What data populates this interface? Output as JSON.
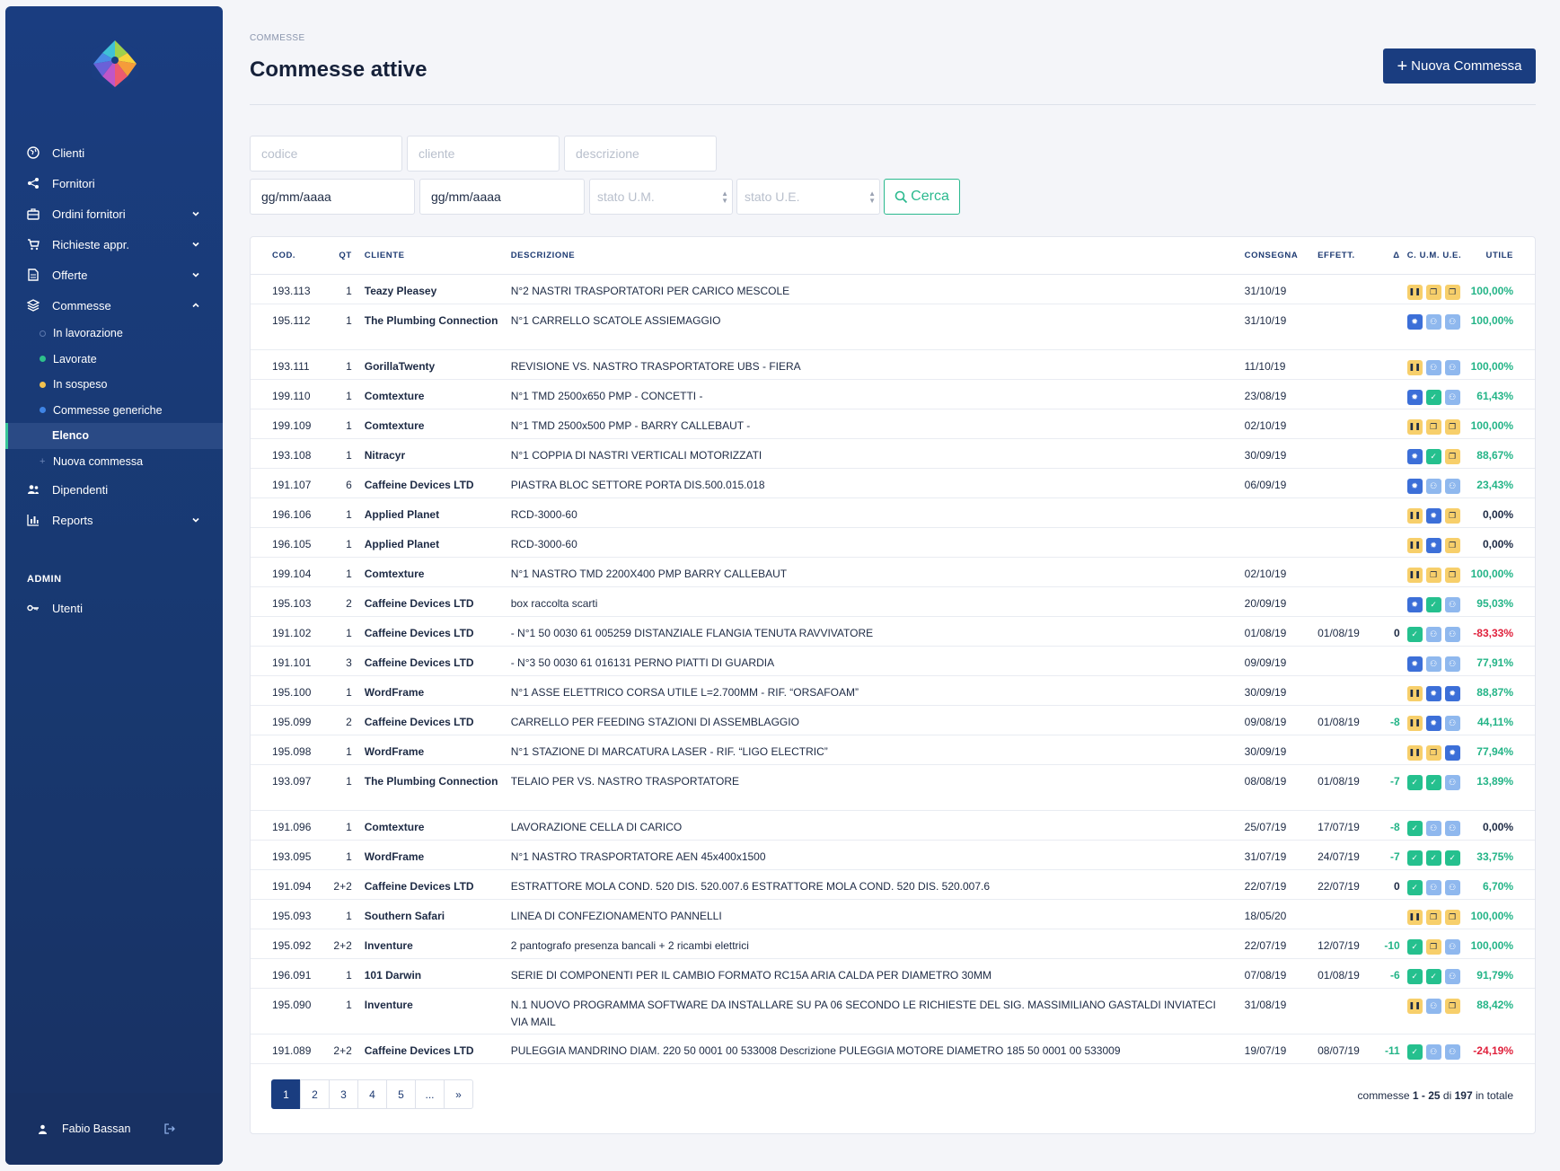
{
  "sidebar": {
    "nav": [
      {
        "label": "Clienti",
        "icon": "globe-icon"
      },
      {
        "label": "Fornitori",
        "icon": "share-icon"
      },
      {
        "label": "Ordini fornitori",
        "icon": "briefcase-icon",
        "chevron": "down"
      },
      {
        "label": "Richieste appr.",
        "icon": "cart-icon",
        "chevron": "down"
      },
      {
        "label": "Offerte",
        "icon": "document-icon",
        "chevron": "down"
      },
      {
        "label": "Commesse",
        "icon": "layers-icon",
        "chevron": "up"
      }
    ],
    "commesse_sub": [
      {
        "label": "In lavorazione",
        "dot": "#2b4d8f"
      },
      {
        "label": "Lavorate",
        "dot": "#2ec08b"
      },
      {
        "label": "In sospeso",
        "dot": "#f2c14e"
      },
      {
        "label": "Commesse generiche",
        "dot": "#3f84e5"
      },
      {
        "label": "Elenco",
        "active": true
      },
      {
        "label": "Nuova commessa",
        "dot": "plus"
      }
    ],
    "nav2": [
      {
        "label": "Dipendenti",
        "icon": "users-icon"
      },
      {
        "label": "Reports",
        "icon": "bar-chart-icon",
        "chevron": "down"
      }
    ],
    "admin_label": "ADMIN",
    "admin_items": [
      {
        "label": "Utenti",
        "icon": "key-icon"
      }
    ],
    "user_name": "Fabio Bassan"
  },
  "header": {
    "breadcrumb": "COMMESSE",
    "title": "Commesse attive",
    "new_button": "Nuova Commessa"
  },
  "filters": {
    "codice_placeholder": "codice",
    "cliente_placeholder": "cliente",
    "descrizione_placeholder": "descrizione",
    "date_from": "gg/mm/aaaa",
    "date_to": "gg/mm/aaaa",
    "stato_um": "stato U.M.",
    "stato_ue": "stato U.E.",
    "search_label": "Cerca"
  },
  "table": {
    "columns": [
      "COD.",
      "QT",
      "CLIENTE",
      "DESCRIZIONE",
      "CONSEGNA",
      "EFFETT.",
      "Δ",
      "C. U.M. U.E.",
      "UTILE"
    ],
    "rows": [
      {
        "cod": "193.113",
        "qt": "1",
        "cliente": "Teazy Pleasey",
        "desc": "N°2 NASTRI TRASPORTATORI PER CARICO MESCOLE",
        "consegna": "31/10/19",
        "effett": "",
        "delta": "",
        "stato": [
          "pause",
          "doc",
          "doc"
        ],
        "utile": "100,00%",
        "u": "pos"
      },
      {
        "cod": "195.112",
        "qt": "1",
        "cliente": "The Plumbing Connection",
        "desc": "N°1 CARRELLO SCATOLE ASSIEMAGGIO",
        "consegna": "31/10/19",
        "effett": "",
        "delta": "",
        "stato": [
          "gear",
          "user",
          "user"
        ],
        "utile": "100,00%",
        "u": "pos",
        "tall": true
      },
      {
        "cod": "193.111",
        "qt": "1",
        "cliente": "GorillaTwenty",
        "desc": "REVISIONE VS. NASTRO TRASPORTATORE UBS - FIERA",
        "consegna": "11/10/19",
        "effett": "",
        "delta": "",
        "stato": [
          "pause",
          "user",
          "user"
        ],
        "utile": "100,00%",
        "u": "pos"
      },
      {
        "cod": "199.110",
        "qt": "1",
        "cliente": "Comtexture",
        "desc": "N°1 TMD 2500x650 PMP - CONCETTI -",
        "consegna": "23/08/19",
        "effett": "",
        "delta": "",
        "stato": [
          "gear",
          "check",
          "user"
        ],
        "utile": "61,43%",
        "u": "pos"
      },
      {
        "cod": "199.109",
        "qt": "1",
        "cliente": "Comtexture",
        "desc": "N°1 TMD 2500x500 PMP - BARRY CALLEBAUT -",
        "consegna": "02/10/19",
        "effett": "",
        "delta": "",
        "stato": [
          "pause",
          "doc",
          "doc"
        ],
        "utile": "100,00%",
        "u": "pos"
      },
      {
        "cod": "193.108",
        "qt": "1",
        "cliente": "Nitracyr",
        "desc": "N°1 COPPIA DI NASTRI VERTICALI MOTORIZZATI",
        "consegna": "30/09/19",
        "effett": "",
        "delta": "",
        "stato": [
          "gear",
          "check",
          "doc"
        ],
        "utile": "88,67%",
        "u": "pos"
      },
      {
        "cod": "191.107",
        "qt": "6",
        "cliente": "Caffeine Devices LTD",
        "desc": "PIASTRA BLOC SETTORE PORTA DIS.500.015.018",
        "consegna": "06/09/19",
        "effett": "",
        "delta": "",
        "stato": [
          "gear",
          "user",
          "user"
        ],
        "utile": "23,43%",
        "u": "pos"
      },
      {
        "cod": "196.106",
        "qt": "1",
        "cliente": "Applied Planet",
        "desc": "RCD-3000-60",
        "consegna": "",
        "effett": "",
        "delta": "",
        "stato": [
          "pause",
          "gear",
          "doc"
        ],
        "utile": "0,00%",
        "u": "zero"
      },
      {
        "cod": "196.105",
        "qt": "1",
        "cliente": "Applied Planet",
        "desc": "RCD-3000-60",
        "consegna": "",
        "effett": "",
        "delta": "",
        "stato": [
          "pause",
          "gear",
          "doc"
        ],
        "utile": "0,00%",
        "u": "zero"
      },
      {
        "cod": "199.104",
        "qt": "1",
        "cliente": "Comtexture",
        "desc": "N°1 NASTRO TMD 2200X400 PMP BARRY CALLEBAUT",
        "consegna": "02/10/19",
        "effett": "",
        "delta": "",
        "stato": [
          "pause",
          "doc",
          "doc"
        ],
        "utile": "100,00%",
        "u": "pos"
      },
      {
        "cod": "195.103",
        "qt": "2",
        "cliente": "Caffeine Devices LTD",
        "desc": "box raccolta scarti",
        "consegna": "20/09/19",
        "effett": "",
        "delta": "",
        "stato": [
          "gear",
          "check",
          "user"
        ],
        "utile": "95,03%",
        "u": "pos"
      },
      {
        "cod": "191.102",
        "qt": "1",
        "cliente": "Caffeine Devices LTD",
        "desc": "- N°1 50 0030 61 005259 DISTANZIALE FLANGIA TENUTA RAVVIVATORE",
        "consegna": "01/08/19",
        "effett": "01/08/19",
        "delta": "0",
        "stato": [
          "check",
          "user",
          "user"
        ],
        "utile": "-83,33%",
        "u": "neg"
      },
      {
        "cod": "191.101",
        "qt": "3",
        "cliente": "Caffeine Devices LTD",
        "desc": "- N°3 50 0030 61 016131 PERNO PIATTI DI GUARDIA",
        "consegna": "09/09/19",
        "effett": "",
        "delta": "",
        "stato": [
          "gear",
          "user",
          "user"
        ],
        "utile": "77,91%",
        "u": "pos"
      },
      {
        "cod": "195.100",
        "qt": "1",
        "cliente": "WordFrame",
        "desc": "N°1 ASSE ELETTRICO CORSA UTILE L=2.700MM - RIF. “ORSAFOAM”",
        "consegna": "30/09/19",
        "effett": "",
        "delta": "",
        "stato": [
          "pause",
          "gear",
          "gear"
        ],
        "utile": "88,87%",
        "u": "pos"
      },
      {
        "cod": "195.099",
        "qt": "2",
        "cliente": "Caffeine Devices LTD",
        "desc": "CARRELLO PER FEEDING STAZIONI DI ASSEMBLAGGIO",
        "consegna": "09/08/19",
        "effett": "01/08/19",
        "delta": "-8",
        "stato": [
          "pause",
          "gear",
          "user"
        ],
        "utile": "44,11%",
        "u": "pos"
      },
      {
        "cod": "195.098",
        "qt": "1",
        "cliente": "WordFrame",
        "desc": "N°1 STAZIONE DI MARCATURA LASER - RIF. “LIGO ELECTRIC”",
        "consegna": "30/09/19",
        "effett": "",
        "delta": "",
        "stato": [
          "pause",
          "doc",
          "gear"
        ],
        "utile": "77,94%",
        "u": "pos"
      },
      {
        "cod": "193.097",
        "qt": "1",
        "cliente": "The Plumbing Connection",
        "desc": "TELAIO PER VS. NASTRO TRASPORTATORE",
        "consegna": "08/08/19",
        "effett": "01/08/19",
        "delta": "-7",
        "stato": [
          "check",
          "check",
          "user"
        ],
        "utile": "13,89%",
        "u": "pos",
        "tall": true
      },
      {
        "cod": "191.096",
        "qt": "1",
        "cliente": "Comtexture",
        "desc": "LAVORAZIONE CELLA DI CARICO",
        "consegna": "25/07/19",
        "effett": "17/07/19",
        "delta": "-8",
        "stato": [
          "check",
          "user",
          "user"
        ],
        "utile": "0,00%",
        "u": "zero"
      },
      {
        "cod": "193.095",
        "qt": "1",
        "cliente": "WordFrame",
        "desc": "N°1 NASTRO TRASPORTATORE AEN 45x400x1500",
        "consegna": "31/07/19",
        "effett": "24/07/19",
        "delta": "-7",
        "stato": [
          "check",
          "check",
          "check"
        ],
        "utile": "33,75%",
        "u": "pos"
      },
      {
        "cod": "191.094",
        "qt": "2+2",
        "cliente": "Caffeine Devices LTD",
        "desc": "ESTRATTORE MOLA COND. 520 DIS. 520.007.6 ESTRATTORE MOLA COND. 520 DIS. 520.007.6",
        "consegna": "22/07/19",
        "effett": "22/07/19",
        "delta": "0",
        "stato": [
          "check",
          "user",
          "user"
        ],
        "utile": "6,70%",
        "u": "pos"
      },
      {
        "cod": "195.093",
        "qt": "1",
        "cliente": "Southern Safari",
        "desc": "LINEA DI CONFEZIONAMENTO PANNELLI",
        "consegna": "18/05/20",
        "effett": "",
        "delta": "",
        "stato": [
          "pause",
          "doc",
          "doc"
        ],
        "utile": "100,00%",
        "u": "pos"
      },
      {
        "cod": "195.092",
        "qt": "2+2",
        "cliente": "Inventure",
        "desc": "2 pantografo presenza bancali + 2 ricambi elettrici",
        "consegna": "22/07/19",
        "effett": "12/07/19",
        "delta": "-10",
        "stato": [
          "check",
          "doc",
          "user"
        ],
        "utile": "100,00%",
        "u": "pos"
      },
      {
        "cod": "196.091",
        "qt": "1",
        "cliente": "101 Darwin",
        "desc": "SERIE DI COMPONENTI PER IL CAMBIO FORMATO RC15A ARIA CALDA PER DIAMETRO 30MM",
        "consegna": "07/08/19",
        "effett": "01/08/19",
        "delta": "-6",
        "stato": [
          "check",
          "check",
          "user"
        ],
        "utile": "91,79%",
        "u": "pos"
      },
      {
        "cod": "195.090",
        "qt": "1",
        "cliente": "Inventure",
        "desc": "N.1 NUOVO PROGRAMMA SOFTWARE DA INSTALLARE SU PA 06 SECONDO LE RICHIESTE DEL SIG. MASSIMILIANO GASTALDI INVIATECI VIA MAIL",
        "consegna": "31/08/19",
        "effett": "",
        "delta": "",
        "stato": [
          "pause",
          "user",
          "doc"
        ],
        "utile": "88,42%",
        "u": "pos",
        "tall": true
      },
      {
        "cod": "191.089",
        "qt": "2+2",
        "cliente": "Caffeine Devices LTD",
        "desc": "PULEGGIA MANDRINO DIAM. 220 50 0001 00 533008 Descrizione PULEGGIA MOTORE DIAMETRO 185 50 0001 00 533009",
        "consegna": "19/07/19",
        "effett": "08/07/19",
        "delta": "-11",
        "stato": [
          "check",
          "user",
          "user"
        ],
        "utile": "-24,19%",
        "u": "neg"
      }
    ]
  },
  "pagination": {
    "pages": [
      "1",
      "2",
      "3",
      "4",
      "5",
      "...",
      "»"
    ],
    "active": "1",
    "total_prefix": "commesse",
    "range": "1 - 25",
    "of": "di",
    "total": "197",
    "suffix": "in totale"
  },
  "colors": {
    "sidebar": "#1a3d80",
    "accent": "#2ab98e",
    "negative": "#e0213c"
  }
}
